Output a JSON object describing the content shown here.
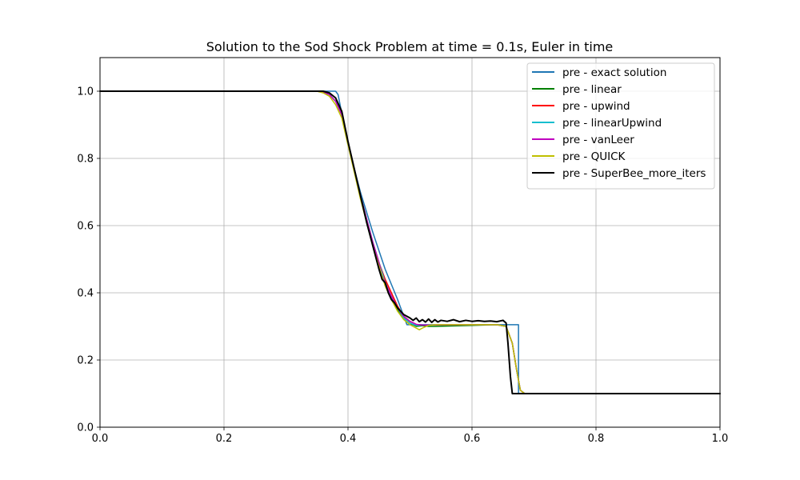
{
  "chart_data": {
    "type": "line",
    "title": "Solution to the Sod Shock Problem at time = 0.1s, Euler in time",
    "xlabel": "",
    "ylabel": "",
    "xlim": [
      0.0,
      1.0
    ],
    "ylim": [
      0.0,
      1.1
    ],
    "grid": true,
    "legend_position": "top-right",
    "x_ticks": [
      0.0,
      0.2,
      0.4,
      0.6,
      0.8,
      1.0
    ],
    "x_tick_labels": [
      "0.0",
      "0.2",
      "0.4",
      "0.6",
      "0.8",
      "1.0"
    ],
    "y_ticks": [
      0.0,
      0.2,
      0.4,
      0.6,
      0.8,
      1.0
    ],
    "y_tick_labels": [
      "0.0",
      "0.2",
      "0.4",
      "0.6",
      "0.8",
      "1.0"
    ],
    "series": [
      {
        "name": "pre - exact solution",
        "color": "#1f77b4",
        "x": [
          0.0,
          0.38,
          0.384,
          0.4,
          0.42,
          0.44,
          0.46,
          0.48,
          0.495,
          0.65,
          0.65,
          0.675,
          0.675,
          1.0
        ],
        "y": [
          1.0,
          1.0,
          0.99,
          0.84,
          0.7,
          0.58,
          0.47,
          0.38,
          0.305,
          0.305,
          0.305,
          0.305,
          0.1,
          0.1
        ]
      },
      {
        "name": "pre - linear",
        "color": "#008000",
        "x": [
          0.0,
          0.35,
          0.36,
          0.37,
          0.38,
          0.39,
          0.4,
          0.41,
          0.42,
          0.43,
          0.44,
          0.45,
          0.46,
          0.47,
          0.48,
          0.49,
          0.5,
          0.51,
          0.52,
          0.53,
          0.54,
          0.6,
          0.64,
          0.655,
          0.665,
          0.672,
          0.678,
          0.685,
          1.0
        ],
        "y": [
          1.0,
          1.0,
          0.997,
          0.99,
          0.97,
          0.93,
          0.85,
          0.77,
          0.69,
          0.62,
          0.55,
          0.49,
          0.43,
          0.39,
          0.35,
          0.325,
          0.31,
          0.3,
          0.302,
          0.3,
          0.3,
          0.303,
          0.305,
          0.3,
          0.25,
          0.17,
          0.11,
          0.1,
          0.1
        ]
      },
      {
        "name": "pre - upwind",
        "color": "#ff0000",
        "x": [
          0.0,
          0.35,
          0.36,
          0.37,
          0.38,
          0.39,
          0.4,
          0.41,
          0.42,
          0.43,
          0.44,
          0.45,
          0.46,
          0.47,
          0.48,
          0.49,
          0.5,
          0.51,
          0.52,
          0.6,
          0.64,
          0.655,
          0.665,
          0.672,
          0.678,
          0.685,
          1.0
        ],
        "y": [
          1.0,
          1.0,
          0.997,
          0.99,
          0.97,
          0.93,
          0.85,
          0.77,
          0.69,
          0.62,
          0.55,
          0.49,
          0.44,
          0.4,
          0.36,
          0.33,
          0.315,
          0.306,
          0.304,
          0.305,
          0.305,
          0.3,
          0.25,
          0.17,
          0.11,
          0.1,
          0.1
        ]
      },
      {
        "name": "pre - linearUpwind",
        "color": "#17becf",
        "x": [
          0.0,
          0.35,
          0.36,
          0.37,
          0.38,
          0.39,
          0.4,
          0.41,
          0.42,
          0.43,
          0.44,
          0.45,
          0.46,
          0.47,
          0.48,
          0.49,
          0.5,
          0.51,
          0.52,
          0.6,
          0.64,
          0.655,
          0.665,
          0.672,
          0.678,
          0.685,
          1.0
        ],
        "y": [
          1.0,
          1.0,
          0.997,
          0.99,
          0.97,
          0.93,
          0.85,
          0.77,
          0.69,
          0.62,
          0.55,
          0.49,
          0.43,
          0.39,
          0.355,
          0.325,
          0.31,
          0.303,
          0.304,
          0.305,
          0.305,
          0.3,
          0.25,
          0.17,
          0.11,
          0.1,
          0.1
        ]
      },
      {
        "name": "pre - vanLeer",
        "color": "#bf00bf",
        "x": [
          0.0,
          0.35,
          0.36,
          0.37,
          0.38,
          0.39,
          0.4,
          0.41,
          0.42,
          0.43,
          0.44,
          0.45,
          0.455,
          0.46,
          0.47,
          0.48,
          0.49,
          0.5,
          0.51,
          0.52,
          0.6,
          0.64,
          0.655,
          0.665,
          0.672,
          0.678,
          0.685,
          1.0
        ],
        "y": [
          1.0,
          1.0,
          0.997,
          0.99,
          0.97,
          0.93,
          0.85,
          0.77,
          0.69,
          0.62,
          0.55,
          0.49,
          0.45,
          0.43,
          0.39,
          0.355,
          0.33,
          0.315,
          0.306,
          0.304,
          0.305,
          0.305,
          0.3,
          0.25,
          0.17,
          0.11,
          0.1,
          0.1
        ]
      },
      {
        "name": "pre - QUICK",
        "color": "#bfbf00",
        "x": [
          0.0,
          0.35,
          0.36,
          0.37,
          0.38,
          0.39,
          0.4,
          0.41,
          0.42,
          0.43,
          0.44,
          0.45,
          0.46,
          0.47,
          0.48,
          0.49,
          0.5,
          0.51,
          0.515,
          0.52,
          0.53,
          0.54,
          0.6,
          0.64,
          0.655,
          0.665,
          0.672,
          0.678,
          0.685,
          1.0
        ],
        "y": [
          1.0,
          1.0,
          0.995,
          0.985,
          0.96,
          0.92,
          0.84,
          0.76,
          0.68,
          0.61,
          0.54,
          0.48,
          0.42,
          0.38,
          0.345,
          0.32,
          0.305,
          0.295,
          0.29,
          0.295,
          0.303,
          0.305,
          0.305,
          0.305,
          0.3,
          0.25,
          0.17,
          0.11,
          0.1,
          0.1
        ]
      },
      {
        "name": "pre - SuperBee_more_iters",
        "color": "#000000",
        "x": [
          0.0,
          0.36,
          0.37,
          0.38,
          0.39,
          0.4,
          0.41,
          0.42,
          0.43,
          0.44,
          0.45,
          0.455,
          0.46,
          0.465,
          0.47,
          0.475,
          0.48,
          0.485,
          0.49,
          0.495,
          0.5,
          0.505,
          0.51,
          0.515,
          0.52,
          0.525,
          0.53,
          0.535,
          0.54,
          0.545,
          0.55,
          0.56,
          0.57,
          0.58,
          0.59,
          0.6,
          0.61,
          0.62,
          0.63,
          0.64,
          0.65,
          0.655,
          0.658,
          0.662,
          0.665,
          0.67,
          1.0
        ],
        "y": [
          1.0,
          1.0,
          0.995,
          0.98,
          0.94,
          0.85,
          0.77,
          0.69,
          0.61,
          0.54,
          0.47,
          0.44,
          0.43,
          0.4,
          0.38,
          0.37,
          0.355,
          0.345,
          0.335,
          0.33,
          0.325,
          0.318,
          0.325,
          0.314,
          0.32,
          0.313,
          0.322,
          0.312,
          0.32,
          0.313,
          0.318,
          0.315,
          0.32,
          0.314,
          0.318,
          0.315,
          0.317,
          0.315,
          0.316,
          0.314,
          0.318,
          0.31,
          0.25,
          0.15,
          0.1,
          0.1,
          0.1
        ]
      }
    ]
  }
}
